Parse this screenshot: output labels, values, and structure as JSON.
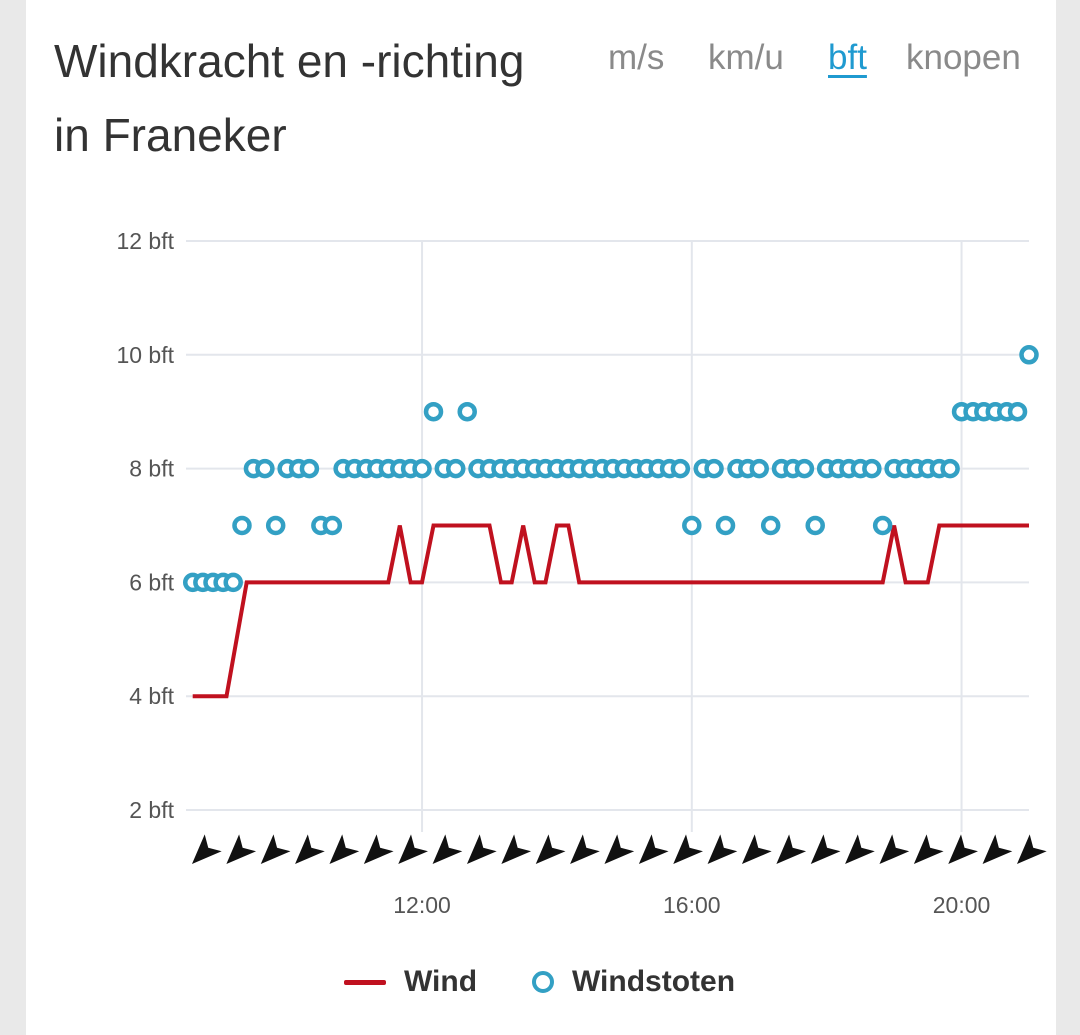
{
  "title_line1": "Windkracht en -richting",
  "title_line2": "in Franeker",
  "units": [
    {
      "label": "m/s",
      "active": false
    },
    {
      "label": "km/u",
      "active": false
    },
    {
      "label": "bft",
      "active": true
    },
    {
      "label": "knopen",
      "active": false
    }
  ],
  "colors": {
    "wind": "#c0111f",
    "gusts": "#33a0c4",
    "grid": "#e3e6ec",
    "active_unit": "#1f9ad0"
  },
  "chart_data": {
    "type": "line",
    "x_unit": "hours",
    "xlim": [
      8.5,
      21.0
    ],
    "ylim": [
      2,
      12
    ],
    "y_ticks": [
      2,
      4,
      6,
      8,
      10,
      12
    ],
    "y_tick_labels": [
      "2 bft",
      "4 bft",
      "6 bft",
      "8 bft",
      "10 bft",
      "12 bft"
    ],
    "x_ticks": [
      12,
      16,
      20
    ],
    "x_tick_labels": [
      "12:00",
      "16:00",
      "20:00"
    ],
    "legend_position": "bottom",
    "series": [
      {
        "name": "Wind",
        "kind": "line",
        "points": [
          [
            8.6,
            4
          ],
          [
            9.1,
            4
          ],
          [
            9.4,
            6
          ],
          [
            11.5,
            6
          ],
          [
            11.67,
            7
          ],
          [
            11.83,
            6
          ],
          [
            12.0,
            6
          ],
          [
            12.17,
            7
          ],
          [
            12.5,
            7
          ],
          [
            13.0,
            7
          ],
          [
            13.17,
            6
          ],
          [
            13.33,
            6
          ],
          [
            13.5,
            7
          ],
          [
            13.67,
            6
          ],
          [
            13.83,
            6
          ],
          [
            14.0,
            7
          ],
          [
            14.17,
            7
          ],
          [
            14.33,
            6
          ],
          [
            18.83,
            6
          ],
          [
            19.0,
            7
          ],
          [
            19.17,
            6
          ],
          [
            19.5,
            6
          ],
          [
            19.67,
            7
          ],
          [
            21.0,
            7
          ]
        ]
      },
      {
        "name": "Windstoten",
        "kind": "scatter",
        "points": [
          [
            8.6,
            6
          ],
          [
            8.75,
            6
          ],
          [
            8.9,
            6
          ],
          [
            9.05,
            6
          ],
          [
            9.2,
            6
          ],
          [
            9.33,
            7
          ],
          [
            9.5,
            8
          ],
          [
            9.67,
            8
          ],
          [
            9.83,
            7
          ],
          [
            10.0,
            8
          ],
          [
            10.17,
            8
          ],
          [
            10.33,
            8
          ],
          [
            10.5,
            7
          ],
          [
            10.67,
            7
          ],
          [
            10.83,
            8
          ],
          [
            11.0,
            8
          ],
          [
            11.17,
            8
          ],
          [
            11.33,
            8
          ],
          [
            11.5,
            8
          ],
          [
            11.67,
            8
          ],
          [
            11.83,
            8
          ],
          [
            12.0,
            8
          ],
          [
            12.17,
            9
          ],
          [
            12.33,
            8
          ],
          [
            12.5,
            8
          ],
          [
            12.67,
            9
          ],
          [
            12.83,
            8
          ],
          [
            13.0,
            8
          ],
          [
            13.17,
            8
          ],
          [
            13.33,
            8
          ],
          [
            13.5,
            8
          ],
          [
            13.67,
            8
          ],
          [
            13.83,
            8
          ],
          [
            14.0,
            8
          ],
          [
            14.17,
            8
          ],
          [
            14.33,
            8
          ],
          [
            14.5,
            8
          ],
          [
            14.67,
            8
          ],
          [
            14.83,
            8
          ],
          [
            15.0,
            8
          ],
          [
            15.17,
            8
          ],
          [
            15.33,
            8
          ],
          [
            15.5,
            8
          ],
          [
            15.67,
            8
          ],
          [
            15.83,
            8
          ],
          [
            16.0,
            7
          ],
          [
            16.17,
            8
          ],
          [
            16.33,
            8
          ],
          [
            16.5,
            7
          ],
          [
            16.67,
            8
          ],
          [
            16.83,
            8
          ],
          [
            17.0,
            8
          ],
          [
            17.17,
            7
          ],
          [
            17.33,
            8
          ],
          [
            17.5,
            8
          ],
          [
            17.67,
            8
          ],
          [
            17.83,
            7
          ],
          [
            18.0,
            8
          ],
          [
            18.17,
            8
          ],
          [
            18.33,
            8
          ],
          [
            18.5,
            8
          ],
          [
            18.67,
            8
          ],
          [
            18.83,
            7
          ],
          [
            19.0,
            8
          ],
          [
            19.17,
            8
          ],
          [
            19.33,
            8
          ],
          [
            19.5,
            8
          ],
          [
            19.67,
            8
          ],
          [
            19.83,
            8
          ],
          [
            20.0,
            9
          ],
          [
            20.17,
            9
          ],
          [
            20.33,
            9
          ],
          [
            20.5,
            9
          ],
          [
            20.67,
            9
          ],
          [
            20.83,
            9
          ],
          [
            21.0,
            10
          ]
        ]
      }
    ],
    "direction_arrows": {
      "count": 25,
      "direction": "south-west",
      "icon": "navigation-arrow-icon"
    }
  },
  "legend": [
    {
      "name": "Wind"
    },
    {
      "name": "Windstoten"
    }
  ]
}
